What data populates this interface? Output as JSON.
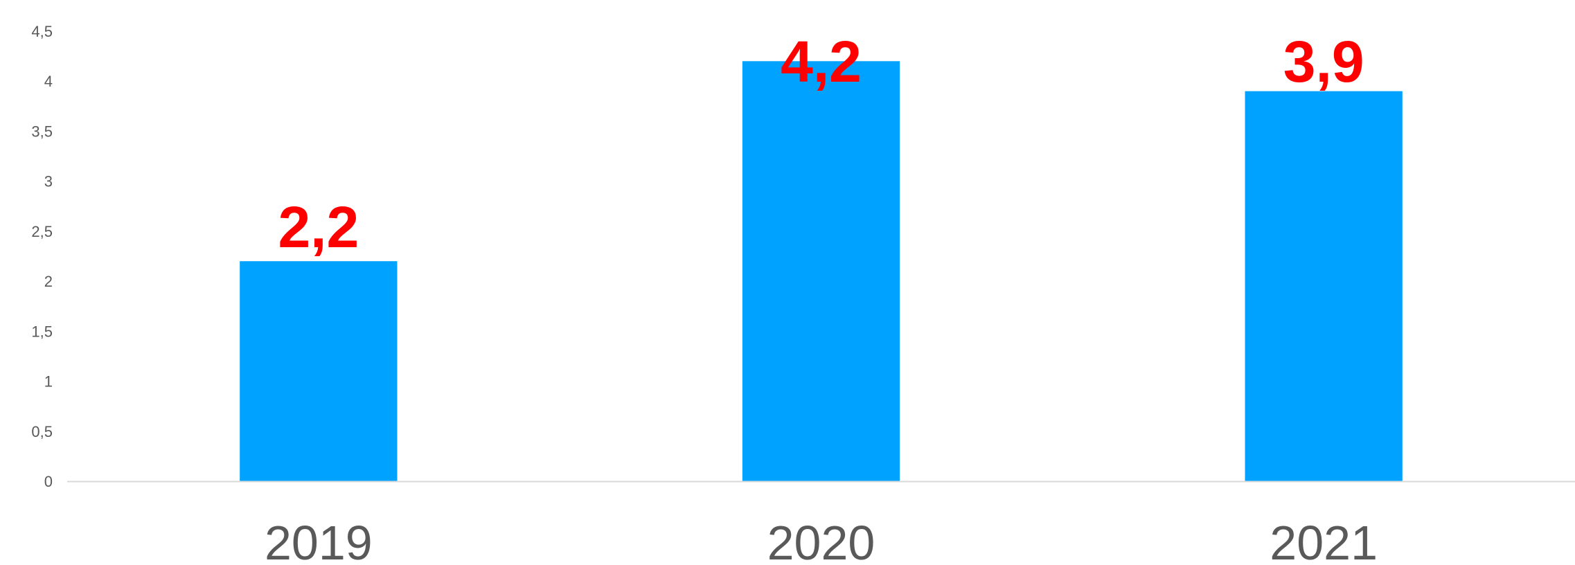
{
  "chart_data": {
    "type": "bar",
    "categories": [
      "2019",
      "2020",
      "2021"
    ],
    "values": [
      2.2,
      4.2,
      3.9
    ],
    "data_labels": [
      "2,2",
      "4,2",
      "3,9"
    ],
    "title": "",
    "xlabel": "",
    "ylabel": "",
    "ylim": [
      0,
      4.5
    ],
    "yticks": [
      0,
      0.5,
      1,
      1.5,
      2,
      2.5,
      3,
      3.5,
      4,
      4.5
    ],
    "ytick_labels": [
      "0",
      "0,5",
      "1",
      "1,5",
      "2",
      "2,5",
      "3",
      "3,5",
      "4",
      "4,5"
    ],
    "grid": false,
    "legend": "none",
    "colors": {
      "bar": "#00A2FF",
      "data_label": "#FF0000",
      "axis_text": "#595959",
      "baseline": "#D9D9D9"
    }
  }
}
